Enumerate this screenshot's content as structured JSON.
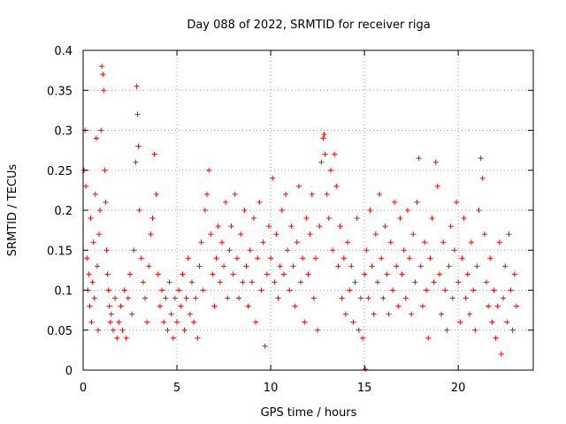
{
  "chart_data": {
    "type": "scatter",
    "title": "Day 088 of 2022, SRMTID for receiver riga",
    "xlabel": "GPS time / hours",
    "ylabel": "SRMTID / TECUs",
    "xlim": [
      0,
      24
    ],
    "ylim": [
      0,
      0.4
    ],
    "xticks": [
      0,
      5,
      10,
      15,
      20
    ],
    "xtick_labels": [
      "0",
      "5",
      "10",
      "15",
      "20"
    ],
    "yticks": [
      0,
      0.05,
      0.1,
      0.15,
      0.2,
      0.25,
      0.3,
      0.35,
      0.4
    ],
    "ytick_labels": [
      "0",
      "0.05",
      "0.1",
      "0.15",
      "0.2",
      "0.25",
      "0.3",
      "0.35",
      "0.4"
    ],
    "grid": true,
    "marker": "plus",
    "color": "#ff0000",
    "series": [
      {
        "name": "riga",
        "points": [
          [
            0.05,
            0.25
          ],
          [
            0.1,
            0.3
          ],
          [
            0.15,
            0.23
          ],
          [
            0.2,
            0.14
          ],
          [
            0.25,
            0.1
          ],
          [
            0.3,
            0.12
          ],
          [
            0.35,
            0.08
          ],
          [
            0.4,
            0.19
          ],
          [
            0.45,
            0.06
          ],
          [
            0.5,
            0.11
          ],
          [
            0.55,
            0.16
          ],
          [
            0.6,
            0.09
          ],
          [
            0.65,
            0.22
          ],
          [
            0.7,
            0.29
          ],
          [
            0.75,
            0.13
          ],
          [
            0.8,
            0.05
          ],
          [
            0.85,
            0.17
          ],
          [
            0.9,
            0.2
          ],
          [
            0.95,
            0.3
          ],
          [
            1.0,
            0.38
          ],
          [
            1.05,
            0.37
          ],
          [
            1.1,
            0.35
          ],
          [
            1.15,
            0.25
          ],
          [
            1.2,
            0.21
          ],
          [
            1.25,
            0.15
          ],
          [
            1.3,
            0.12
          ],
          [
            1.35,
            0.1
          ],
          [
            1.4,
            0.08
          ],
          [
            1.45,
            0.06
          ],
          [
            1.5,
            0.07
          ],
          [
            1.6,
            0.05
          ],
          [
            1.7,
            0.09
          ],
          [
            1.8,
            0.04
          ],
          [
            1.9,
            0.06
          ],
          [
            2.0,
            0.08
          ],
          [
            2.1,
            0.05
          ],
          [
            2.2,
            0.1
          ],
          [
            2.3,
            0.04
          ],
          [
            2.4,
            0.09
          ],
          [
            2.5,
            0.12
          ],
          [
            2.6,
            0.07
          ],
          [
            2.7,
            0.15
          ],
          [
            2.8,
            0.26
          ],
          [
            2.85,
            0.355
          ],
          [
            2.9,
            0.32
          ],
          [
            2.95,
            0.28
          ],
          [
            3.0,
            0.2
          ],
          [
            3.1,
            0.14
          ],
          [
            3.2,
            0.11
          ],
          [
            3.3,
            0.09
          ],
          [
            3.4,
            0.06
          ],
          [
            3.5,
            0.13
          ],
          [
            3.6,
            0.17
          ],
          [
            3.7,
            0.19
          ],
          [
            3.8,
            0.27
          ],
          [
            3.9,
            0.22
          ],
          [
            4.0,
            0.12
          ],
          [
            4.1,
            0.08
          ],
          [
            4.2,
            0.1
          ],
          [
            4.3,
            0.06
          ],
          [
            4.4,
            0.09
          ],
          [
            4.5,
            0.05
          ],
          [
            4.6,
            0.11
          ],
          [
            4.7,
            0.07
          ],
          [
            4.8,
            0.04
          ],
          [
            4.9,
            0.09
          ],
          [
            5.0,
            0.06
          ],
          [
            5.1,
            0.1
          ],
          [
            5.2,
            0.08
          ],
          [
            5.3,
            0.12
          ],
          [
            5.4,
            0.05
          ],
          [
            5.5,
            0.09
          ],
          [
            5.6,
            0.14
          ],
          [
            5.7,
            0.07
          ],
          [
            5.8,
            0.11
          ],
          [
            5.9,
            0.06
          ],
          [
            6.0,
            0.09
          ],
          [
            6.1,
            0.04
          ],
          [
            6.2,
            0.13
          ],
          [
            6.3,
            0.16
          ],
          [
            6.4,
            0.1
          ],
          [
            6.5,
            0.2
          ],
          [
            6.6,
            0.22
          ],
          [
            6.7,
            0.25
          ],
          [
            6.8,
            0.17
          ],
          [
            6.9,
            0.12
          ],
          [
            7.0,
            0.08
          ],
          [
            7.1,
            0.14
          ],
          [
            7.2,
            0.18
          ],
          [
            7.3,
            0.11
          ],
          [
            7.4,
            0.16
          ],
          [
            7.5,
            0.13
          ],
          [
            7.6,
            0.21
          ],
          [
            7.7,
            0.09
          ],
          [
            7.8,
            0.15
          ],
          [
            7.9,
            0.18
          ],
          [
            8.0,
            0.12
          ],
          [
            8.1,
            0.22
          ],
          [
            8.2,
            0.14
          ],
          [
            8.3,
            0.09
          ],
          [
            8.4,
            0.17
          ],
          [
            8.5,
            0.11
          ],
          [
            8.6,
            0.2
          ],
          [
            8.7,
            0.13
          ],
          [
            8.8,
            0.08
          ],
          [
            8.9,
            0.15
          ],
          [
            9.0,
            0.11
          ],
          [
            9.1,
            0.19
          ],
          [
            9.2,
            0.06
          ],
          [
            9.3,
            0.14
          ],
          [
            9.4,
            0.21
          ],
          [
            9.5,
            0.1
          ],
          [
            9.6,
            0.16
          ],
          [
            9.7,
            0.03
          ],
          [
            9.8,
            0.12
          ],
          [
            9.9,
            0.18
          ],
          [
            10.0,
            0.14
          ],
          [
            10.1,
            0.24
          ],
          [
            10.2,
            0.11
          ],
          [
            10.3,
            0.17
          ],
          [
            10.4,
            0.09
          ],
          [
            10.5,
            0.13
          ],
          [
            10.6,
            0.2
          ],
          [
            10.7,
            0.12
          ],
          [
            10.8,
            0.22
          ],
          [
            10.9,
            0.15
          ],
          [
            11.0,
            0.1
          ],
          [
            11.1,
            0.18
          ],
          [
            11.2,
            0.13
          ],
          [
            11.3,
            0.08
          ],
          [
            11.4,
            0.16
          ],
          [
            11.5,
            0.23
          ],
          [
            11.6,
            0.11
          ],
          [
            11.7,
            0.14
          ],
          [
            11.8,
            0.06
          ],
          [
            11.9,
            0.19
          ],
          [
            12.0,
            0.12
          ],
          [
            12.1,
            0.17
          ],
          [
            12.2,
            0.22
          ],
          [
            12.3,
            0.09
          ],
          [
            12.4,
            0.14
          ],
          [
            12.5,
            0.05
          ],
          [
            12.6,
            0.18
          ],
          [
            12.7,
            0.26
          ],
          [
            12.8,
            0.29
          ],
          [
            12.85,
            0.295
          ],
          [
            12.9,
            0.27
          ],
          [
            13.0,
            0.22
          ],
          [
            13.1,
            0.19
          ],
          [
            13.2,
            0.25
          ],
          [
            13.3,
            0.15
          ],
          [
            13.4,
            0.27
          ],
          [
            13.5,
            0.23
          ],
          [
            13.6,
            0.13
          ],
          [
            13.7,
            0.18
          ],
          [
            13.8,
            0.09
          ],
          [
            13.9,
            0.14
          ],
          [
            14.0,
            0.07
          ],
          [
            14.1,
            0.16
          ],
          [
            14.2,
            0.1
          ],
          [
            14.3,
            0.13
          ],
          [
            14.4,
            0.06
          ],
          [
            14.5,
            0.11
          ],
          [
            14.6,
            0.19
          ],
          [
            14.7,
            0.05
          ],
          [
            14.8,
            0.09
          ],
          [
            14.9,
            0.04
          ],
          [
            15.0,
            0.12
          ],
          [
            15.05,
            0.001
          ],
          [
            15.1,
            0.15
          ],
          [
            15.2,
            0.09
          ],
          [
            15.3,
            0.2
          ],
          [
            15.4,
            0.13
          ],
          [
            15.5,
            0.07
          ],
          [
            15.6,
            0.17
          ],
          [
            15.7,
            0.11
          ],
          [
            15.8,
            0.22
          ],
          [
            15.9,
            0.14
          ],
          [
            16.0,
            0.09
          ],
          [
            16.1,
            0.18
          ],
          [
            16.2,
            0.12
          ],
          [
            16.3,
            0.07
          ],
          [
            16.4,
            0.16
          ],
          [
            16.5,
            0.1
          ],
          [
            16.6,
            0.21
          ],
          [
            16.7,
            0.13
          ],
          [
            16.8,
            0.08
          ],
          [
            16.9,
            0.19
          ],
          [
            17.0,
            0.12
          ],
          [
            17.1,
            0.15
          ],
          [
            17.2,
            0.09
          ],
          [
            17.3,
            0.2
          ],
          [
            17.4,
            0.14
          ],
          [
            17.5,
            0.07
          ],
          [
            17.6,
            0.17
          ],
          [
            17.7,
            0.11
          ],
          [
            17.8,
            0.21
          ],
          [
            17.9,
            0.265
          ],
          [
            18.0,
            0.13
          ],
          [
            18.1,
            0.08
          ],
          [
            18.2,
            0.16
          ],
          [
            18.3,
            0.1
          ],
          [
            18.4,
            0.04
          ],
          [
            18.5,
            0.14
          ],
          [
            18.6,
            0.19
          ],
          [
            18.7,
            0.11
          ],
          [
            18.8,
            0.26
          ],
          [
            18.9,
            0.23
          ],
          [
            19.0,
            0.12
          ],
          [
            19.1,
            0.07
          ],
          [
            19.2,
            0.16
          ],
          [
            19.3,
            0.1
          ],
          [
            19.4,
            0.05
          ],
          [
            19.5,
            0.13
          ],
          [
            19.6,
            0.18
          ],
          [
            19.7,
            0.09
          ],
          [
            19.8,
            0.15
          ],
          [
            19.9,
            0.21
          ],
          [
            20.0,
            0.11
          ],
          [
            20.1,
            0.06
          ],
          [
            20.2,
            0.14
          ],
          [
            20.3,
            0.19
          ],
          [
            20.4,
            0.09
          ],
          [
            20.5,
            0.12
          ],
          [
            20.6,
            0.07
          ],
          [
            20.7,
            0.16
          ],
          [
            20.8,
            0.1
          ],
          [
            20.9,
            0.05
          ],
          [
            21.0,
            0.13
          ],
          [
            21.1,
            0.2
          ],
          [
            21.2,
            0.265
          ],
          [
            21.3,
            0.24
          ],
          [
            21.4,
            0.17
          ],
          [
            21.5,
            0.11
          ],
          [
            21.6,
            0.08
          ],
          [
            21.7,
            0.14
          ],
          [
            21.8,
            0.06
          ],
          [
            21.9,
            0.1
          ],
          [
            22.0,
            0.04
          ],
          [
            22.1,
            0.08
          ],
          [
            22.2,
            0.16
          ],
          [
            22.3,
            0.02
          ],
          [
            22.4,
            0.09
          ],
          [
            22.5,
            0.13
          ],
          [
            22.6,
            0.06
          ],
          [
            22.7,
            0.17
          ],
          [
            22.8,
            0.1
          ],
          [
            22.9,
            0.05
          ],
          [
            23.0,
            0.12
          ],
          [
            23.1,
            0.08
          ]
        ]
      }
    ]
  }
}
